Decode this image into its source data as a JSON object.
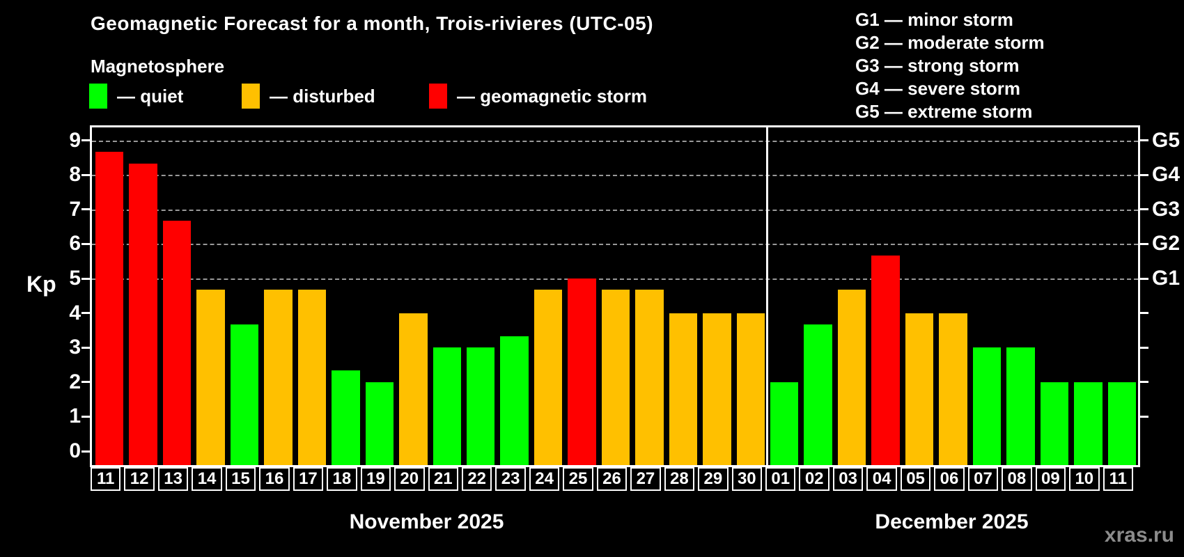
{
  "title": "Geomagnetic Forecast for a month, Trois-rivieres (UTC-05)",
  "subtitle": "Magnetosphere",
  "legend": {
    "items": [
      {
        "key": "quiet",
        "label": "— quiet",
        "color": "#00ff00"
      },
      {
        "key": "disturbed",
        "label": "— disturbed",
        "color": "#ffc000"
      },
      {
        "key": "storm",
        "label": "— geomagnetic storm",
        "color": "#ff0000"
      }
    ]
  },
  "g_legend": [
    "G1 — minor storm",
    "G2 — moderate storm",
    "G3 — strong storm",
    "G4 — severe storm",
    "G5 — extreme storm"
  ],
  "watermark": "xras.ru",
  "chart_data": {
    "type": "bar",
    "ylabel": "Kp",
    "ylim": [
      0,
      9.4
    ],
    "yticks": [
      0,
      1,
      2,
      3,
      4,
      5,
      6,
      7,
      8,
      9
    ],
    "right_ticks": [
      1,
      2,
      3,
      4,
      5,
      6,
      7,
      8,
      9
    ],
    "gridlines": [
      5,
      6,
      7,
      8,
      9
    ],
    "g_levels": [
      {
        "kp": 5,
        "label": "G1"
      },
      {
        "kp": 6,
        "label": "G2"
      },
      {
        "kp": 7,
        "label": "G3"
      },
      {
        "kp": 8,
        "label": "G4"
      },
      {
        "kp": 9,
        "label": "G5"
      }
    ],
    "grid": "horizontal dashed lines at storm levels only",
    "legend_position": "top-left",
    "status_colors": {
      "quiet": "#00ff00",
      "disturbed": "#ffc000",
      "storm": "#ff0000"
    },
    "months": [
      {
        "label": "November 2025",
        "days": [
          "11",
          "12",
          "13",
          "14",
          "15",
          "16",
          "17",
          "18",
          "19",
          "20",
          "21",
          "22",
          "23",
          "24",
          "25",
          "26",
          "27",
          "28",
          "29",
          "30"
        ],
        "values": [
          8.67,
          8.33,
          6.67,
          4.67,
          3.67,
          4.67,
          4.67,
          2.33,
          2.0,
          4.0,
          3.0,
          3.0,
          3.33,
          4.67,
          5.0,
          4.67,
          4.67,
          4.0,
          4.0,
          4.0
        ],
        "status": [
          "storm",
          "storm",
          "storm",
          "disturbed",
          "quiet",
          "disturbed",
          "disturbed",
          "quiet",
          "quiet",
          "disturbed",
          "quiet",
          "quiet",
          "quiet",
          "disturbed",
          "storm",
          "disturbed",
          "disturbed",
          "disturbed",
          "disturbed",
          "disturbed"
        ]
      },
      {
        "label": "December 2025",
        "days": [
          "01",
          "02",
          "03",
          "04",
          "05",
          "06",
          "07",
          "08",
          "09",
          "10",
          "11"
        ],
        "values": [
          2.0,
          3.67,
          4.67,
          5.67,
          4.0,
          4.0,
          3.0,
          3.0,
          2.0,
          2.0,
          2.0
        ],
        "status": [
          "quiet",
          "quiet",
          "disturbed",
          "storm",
          "disturbed",
          "disturbed",
          "quiet",
          "quiet",
          "quiet",
          "quiet",
          "quiet"
        ]
      }
    ]
  }
}
